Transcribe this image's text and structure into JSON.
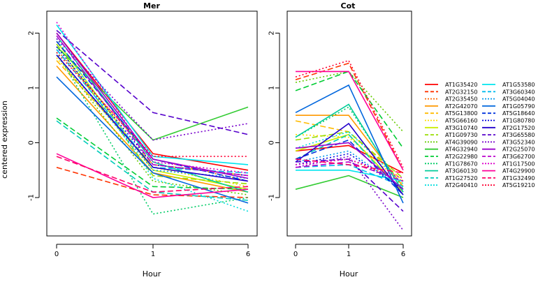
{
  "chart_data": {
    "type": "line",
    "ylabel": "centered expression",
    "x_ticks": [
      "0",
      "1",
      "6"
    ],
    "y_ticks": [
      "-1",
      "0",
      "1",
      "2"
    ],
    "ylim": [
      -1.7,
      2.4
    ],
    "panels": [
      {
        "title": "Mer",
        "xlabel": "Hour",
        "series": [
          {
            "name": "AT1G35420",
            "color": "#ff0000",
            "dash": "solid",
            "values": [
              2.0,
              -0.2,
              -0.5
            ]
          },
          {
            "name": "AT2G32150",
            "color": "#ff3300",
            "dash": "dashed",
            "values": [
              -0.45,
              -0.95,
              -1.0
            ]
          },
          {
            "name": "AT2G35450",
            "color": "#ff6600",
            "dash": "dotted",
            "values": [
              1.7,
              -0.3,
              -0.7
            ]
          },
          {
            "name": "AT2G42070",
            "color": "#ff9900",
            "dash": "solid",
            "values": [
              1.4,
              -0.55,
              -0.9
            ]
          },
          {
            "name": "AT5G13800",
            "color": "#ffbb00",
            "dash": "dashed",
            "values": [
              1.5,
              -0.4,
              -0.6
            ]
          },
          {
            "name": "AT5G66160",
            "color": "#ffdd00",
            "dash": "dotted",
            "values": [
              1.55,
              -0.45,
              -0.8
            ]
          },
          {
            "name": "AT3G10740",
            "color": "#ccee00",
            "dash": "solid",
            "values": [
              1.85,
              -0.5,
              -0.85
            ]
          },
          {
            "name": "AT1G09730",
            "color": "#99dd00",
            "dash": "dashed",
            "values": [
              1.8,
              -0.6,
              -0.75
            ]
          },
          {
            "name": "AT4G39090",
            "color": "#66cc00",
            "dash": "dotted",
            "values": [
              1.6,
              -0.7,
              -0.95
            ]
          },
          {
            "name": "AT4G32940",
            "color": "#33cc33",
            "dash": "solid",
            "values": [
              1.75,
              0.05,
              0.65
            ]
          },
          {
            "name": "AT2G22980",
            "color": "#00cc33",
            "dash": "dashed",
            "values": [
              0.45,
              -0.8,
              -0.85
            ]
          },
          {
            "name": "AT1G78670",
            "color": "#00cc66",
            "dash": "dotted",
            "values": [
              1.65,
              -1.3,
              -1.0
            ]
          },
          {
            "name": "AT3G60130",
            "color": "#00cc99",
            "dash": "solid",
            "values": [
              1.95,
              -0.35,
              -0.9
            ]
          },
          {
            "name": "AT1G27520",
            "color": "#00ccbb",
            "dash": "dashed",
            "values": [
              0.4,
              -0.9,
              -1.05
            ]
          },
          {
            "name": "AT2G40410",
            "color": "#00dddd",
            "dash": "dotted",
            "values": [
              1.9,
              -0.65,
              -1.25
            ]
          },
          {
            "name": "AT1G53580",
            "color": "#00e5ee",
            "dash": "solid",
            "values": [
              2.15,
              -0.25,
              -0.4
            ]
          },
          {
            "name": "AT3G60340",
            "color": "#00bbee",
            "dash": "dashed",
            "values": [
              1.7,
              -0.45,
              -0.55
            ]
          },
          {
            "name": "AT5G04040",
            "color": "#0099ee",
            "dash": "dotted",
            "values": [
              1.6,
              -0.5,
              -0.65
            ]
          },
          {
            "name": "AT1G05790",
            "color": "#0066dd",
            "dash": "solid",
            "values": [
              1.2,
              -0.55,
              -1.1
            ]
          },
          {
            "name": "AT5G18640",
            "color": "#0033dd",
            "dash": "dashed",
            "values": [
              1.85,
              -0.3,
              -0.7
            ]
          },
          {
            "name": "AT1G80780",
            "color": "#0000dd",
            "dash": "dotted",
            "values": [
              1.75,
              -0.4,
              -0.6
            ]
          },
          {
            "name": "AT2G17520",
            "color": "#2200cc",
            "dash": "solid",
            "values": [
              1.6,
              -0.45,
              -0.7
            ]
          },
          {
            "name": "AT3G65580",
            "color": "#5500cc",
            "dash": "dashed",
            "values": [
              2.05,
              0.55,
              0.15
            ]
          },
          {
            "name": "AT3G52340",
            "color": "#7700cc",
            "dash": "dotted",
            "values": [
              1.9,
              0.05,
              0.35
            ]
          },
          {
            "name": "AT2G25070",
            "color": "#9900cc",
            "dash": "solid",
            "values": [
              2.0,
              -0.3,
              -0.65
            ]
          },
          {
            "name": "AT3G62700",
            "color": "#bb00cc",
            "dash": "dashed",
            "values": [
              1.95,
              -0.4,
              -0.6
            ]
          },
          {
            "name": "AT1G17500",
            "color": "#dd00cc",
            "dash": "dotted",
            "values": [
              2.2,
              -0.35,
              -0.55
            ]
          },
          {
            "name": "AT4G29900",
            "color": "#ff0099",
            "dash": "solid",
            "values": [
              -0.2,
              -1.0,
              -0.85
            ]
          },
          {
            "name": "AT1G32490",
            "color": "#ff0066",
            "dash": "dashed",
            "values": [
              -0.25,
              -0.9,
              -0.8
            ]
          },
          {
            "name": "AT5G19210",
            "color": "#ff0033",
            "dash": "dotted",
            "values": [
              1.65,
              -0.25,
              -0.25
            ]
          }
        ]
      },
      {
        "title": "Cot",
        "xlabel": "Hour",
        "series": [
          {
            "name": "AT1G35420",
            "color": "#ff0000",
            "dash": "solid",
            "values": [
              -0.15,
              -0.05,
              -0.55
            ]
          },
          {
            "name": "AT2G32150",
            "color": "#ff3300",
            "dash": "dashed",
            "values": [
              1.15,
              1.45,
              -0.5
            ]
          },
          {
            "name": "AT2G35450",
            "color": "#ff6600",
            "dash": "dotted",
            "values": [
              -0.4,
              -0.3,
              -0.7
            ]
          },
          {
            "name": "AT2G42070",
            "color": "#ff9900",
            "dash": "solid",
            "values": [
              0.5,
              0.5,
              -0.8
            ]
          },
          {
            "name": "AT5G13800",
            "color": "#ffbb00",
            "dash": "dashed",
            "values": [
              0.4,
              0.2,
              -0.7
            ]
          },
          {
            "name": "AT5G66160",
            "color": "#ffdd00",
            "dash": "dotted",
            "values": [
              0.15,
              0.1,
              -0.75
            ]
          },
          {
            "name": "AT3G10740",
            "color": "#ccee00",
            "dash": "solid",
            "values": [
              -0.15,
              0.15,
              -0.9
            ]
          },
          {
            "name": "AT1G09730",
            "color": "#99dd00",
            "dash": "dashed",
            "values": [
              0.05,
              0.2,
              -0.65
            ]
          },
          {
            "name": "AT4G39090",
            "color": "#66cc00",
            "dash": "dotted",
            "values": [
              1.1,
              1.3,
              0.2
            ]
          },
          {
            "name": "AT4G32940",
            "color": "#33cc33",
            "dash": "solid",
            "values": [
              -0.85,
              -0.6,
              -1.0
            ]
          },
          {
            "name": "AT2G22980",
            "color": "#00cc33",
            "dash": "dashed",
            "values": [
              0.95,
              1.3,
              -0.1
            ]
          },
          {
            "name": "AT1G78670",
            "color": "#00cc66",
            "dash": "dotted",
            "values": [
              0.1,
              0.65,
              -0.85
            ]
          },
          {
            "name": "AT3G60130",
            "color": "#00cc99",
            "dash": "solid",
            "values": [
              0.1,
              0.7,
              -0.9
            ]
          },
          {
            "name": "AT1G27520",
            "color": "#00ccbb",
            "dash": "dashed",
            "values": [
              -0.3,
              0.15,
              -0.95
            ]
          },
          {
            "name": "AT2G40410",
            "color": "#00dddd",
            "dash": "dotted",
            "values": [
              -0.1,
              0.2,
              -0.75
            ]
          },
          {
            "name": "AT1G53580",
            "color": "#00e5ee",
            "dash": "solid",
            "values": [
              -0.5,
              -0.5,
              -0.7
            ]
          },
          {
            "name": "AT3G60340",
            "color": "#00bbee",
            "dash": "dashed",
            "values": [
              -0.45,
              -0.4,
              -0.8
            ]
          },
          {
            "name": "AT5G04040",
            "color": "#0099ee",
            "dash": "dotted",
            "values": [
              -0.35,
              -0.15,
              -0.85
            ]
          },
          {
            "name": "AT1G05790",
            "color": "#0066dd",
            "dash": "solid",
            "values": [
              0.55,
              1.05,
              -1.1
            ]
          },
          {
            "name": "AT5G18640",
            "color": "#0033dd",
            "dash": "dashed",
            "values": [
              -0.3,
              0.05,
              -0.95
            ]
          },
          {
            "name": "AT1G80780",
            "color": "#0000dd",
            "dash": "dotted",
            "values": [
              -0.4,
              -0.2,
              -0.85
            ]
          },
          {
            "name": "AT2G17520",
            "color": "#2200cc",
            "dash": "solid",
            "values": [
              -0.35,
              0.35,
              -0.95
            ]
          },
          {
            "name": "AT3G65580",
            "color": "#5500cc",
            "dash": "dashed",
            "values": [
              -0.35,
              -0.3,
              -1.25
            ]
          },
          {
            "name": "AT3G52340",
            "color": "#7700cc",
            "dash": "dotted",
            "values": [
              -0.45,
              -0.25,
              -1.6
            ]
          },
          {
            "name": "AT2G25070",
            "color": "#9900cc",
            "dash": "solid",
            "values": [
              -0.1,
              0.0,
              -0.85
            ]
          },
          {
            "name": "AT3G62700",
            "color": "#bb00cc",
            "dash": "dashed",
            "values": [
              -0.45,
              -0.35,
              -0.7
            ]
          },
          {
            "name": "AT1G17500",
            "color": "#dd00cc",
            "dash": "dotted",
            "values": [
              -0.4,
              -0.3,
              -0.65
            ]
          },
          {
            "name": "AT4G29900",
            "color": "#ff0099",
            "dash": "solid",
            "values": [
              1.3,
              1.3,
              -0.5
            ]
          },
          {
            "name": "AT1G32490",
            "color": "#ff0066",
            "dash": "dashed",
            "values": [
              -0.3,
              -0.4,
              -0.55
            ]
          },
          {
            "name": "AT5G19210",
            "color": "#ff0033",
            "dash": "dotted",
            "values": [
              1.2,
              1.5,
              -0.45
            ]
          }
        ]
      }
    ]
  }
}
